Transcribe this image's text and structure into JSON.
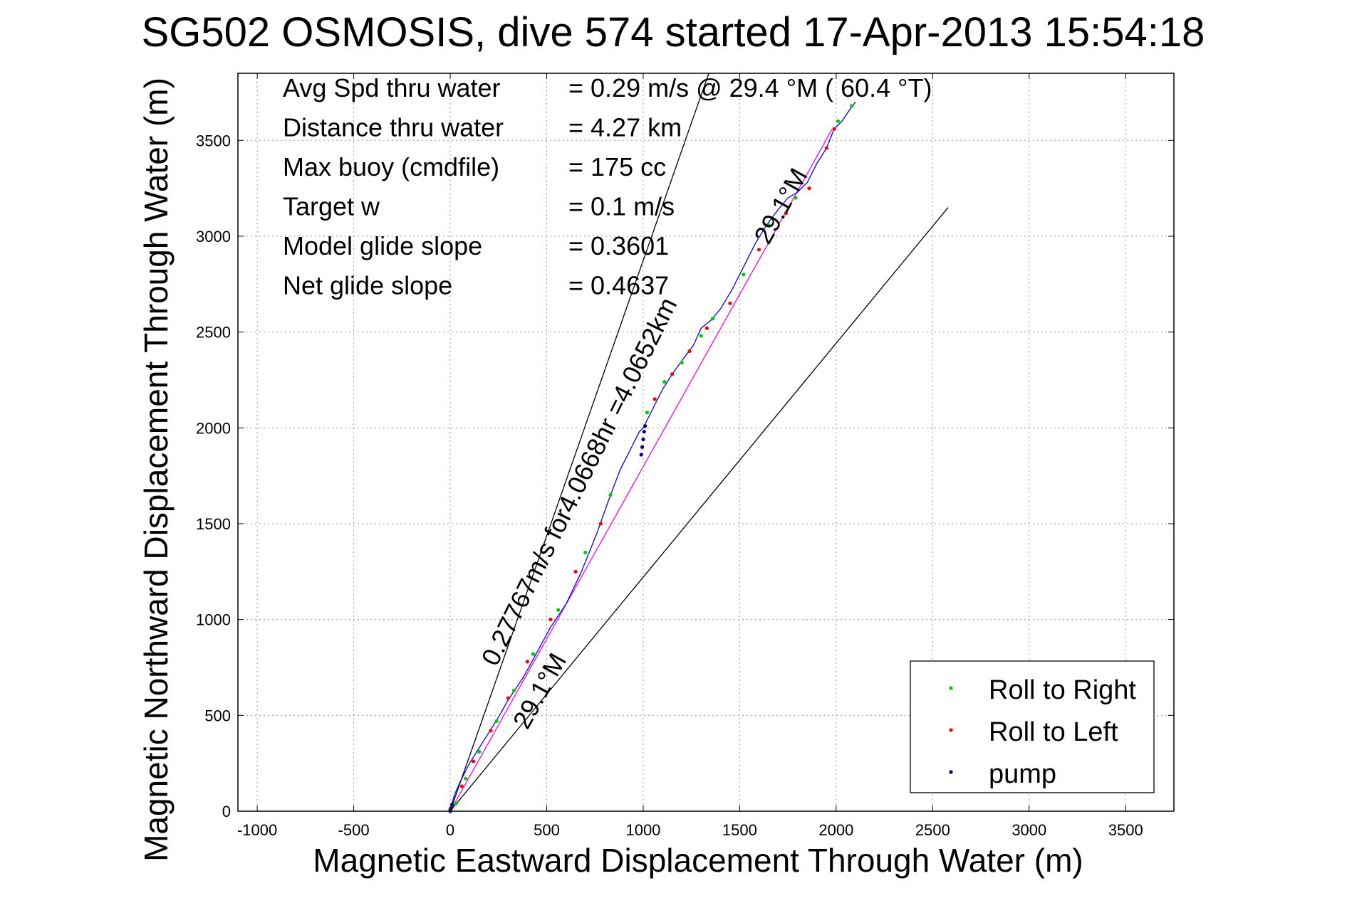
{
  "chart_data": {
    "type": "scatter",
    "title": "SG502 OSMOSIS, dive 574 started 17-Apr-2013 15:54:18",
    "xlabel": "Magnetic Eastward Displacement Through Water (m)",
    "ylabel": "Magnetic Northward Displacement Through Water (m)",
    "xlim": [
      -1100,
      3750
    ],
    "ylim": [
      0,
      3850
    ],
    "xticks": [
      -1000,
      -500,
      0,
      500,
      1000,
      1500,
      2000,
      2500,
      3000,
      3500
    ],
    "yticks": [
      0,
      500,
      1000,
      1500,
      2000,
      2500,
      3000,
      3500
    ],
    "grid": true,
    "stats": [
      {
        "label": "Avg Spd thru water",
        "value": "=  0.29 m/s @  29.4 °M ( 60.4 °T)"
      },
      {
        "label": "Distance thru water",
        "value": "=  4.27 km"
      },
      {
        "label": "Max buoy (cmdfile)",
        "value": "= 175 cc"
      },
      {
        "label": "Target w",
        "value": "= 0.1 m/s"
      },
      {
        "label": "Model glide slope",
        "value": "= 0.3601"
      },
      {
        "label": "Net glide slope",
        "value": "= 0.4637"
      }
    ],
    "annotations": [
      {
        "text": "0.27767m/s for4.0668hr =4.0652km",
        "x": 240,
        "y": 750,
        "angle_deg": 63.6
      },
      {
        "text": "29.1°M",
        "x": 400,
        "y": 420,
        "angle_deg": 60.9
      },
      {
        "text": "29.1°M",
        "x": 1650,
        "y": 2950,
        "angle_deg": 60.9
      }
    ],
    "guide_lines": [
      {
        "name": "heading-line-upper",
        "x": [
          0,
          1340
        ],
        "y": [
          0,
          3850
        ],
        "color": "#000000"
      },
      {
        "name": "heading-line-lower",
        "x": [
          0,
          2580
        ],
        "y": [
          0,
          3150
        ],
        "color": "#000000"
      },
      {
        "name": "net-track-line",
        "x": [
          0,
          1980
        ],
        "y": [
          0,
          3560
        ],
        "color": "#ff00ff"
      }
    ],
    "series": [
      {
        "name": "track",
        "color": "#0000ff",
        "x": [
          0,
          20,
          50,
          100,
          150,
          200,
          250,
          300,
          380,
          450,
          520,
          600,
          680,
          760,
          820,
          880,
          930,
          980,
          1000,
          1050,
          1100,
          1150,
          1200,
          1260,
          1300,
          1350,
          1400,
          1460,
          1520,
          1580,
          1640,
          1700,
          1750,
          1800,
          1850,
          1900,
          1950,
          1990,
          2030,
          2070,
          2100
        ],
        "y": [
          0,
          80,
          150,
          250,
          330,
          410,
          490,
          580,
          700,
          830,
          960,
          1080,
          1250,
          1450,
          1620,
          1780,
          1880,
          1980,
          2000,
          2100,
          2200,
          2280,
          2350,
          2430,
          2520,
          2560,
          2620,
          2720,
          2840,
          2960,
          3060,
          3140,
          3200,
          3230,
          3280,
          3380,
          3460,
          3560,
          3600,
          3660,
          3700
        ]
      },
      {
        "name": "Roll to Right",
        "color": "#00cc00",
        "x": [
          30,
          80,
          150,
          240,
          330,
          430,
          560,
          700,
          830,
          1020,
          1110,
          1200,
          1300,
          1360,
          1520,
          1650,
          1790,
          2010,
          2080
        ],
        "y": [
          40,
          170,
          310,
          470,
          630,
          820,
          1050,
          1350,
          1650,
          2080,
          2240,
          2340,
          2480,
          2570,
          2800,
          3060,
          3200,
          3600,
          3680
        ]
      },
      {
        "name": "Roll to Left",
        "color": "#ff0000",
        "x": [
          0,
          60,
          120,
          210,
          300,
          400,
          520,
          650,
          780,
          1060,
          1150,
          1240,
          1330,
          1450,
          1600,
          1740,
          1860,
          1950,
          1990
        ],
        "y": [
          10,
          130,
          260,
          420,
          590,
          780,
          1000,
          1250,
          1500,
          2150,
          2280,
          2400,
          2520,
          2650,
          2930,
          3120,
          3250,
          3460,
          3560
        ]
      },
      {
        "name": "pump",
        "color": "#000080",
        "x": [
          0,
          5,
          10,
          990,
          995,
          1000,
          1005,
          1010
        ],
        "y": [
          0,
          15,
          35,
          1860,
          1900,
          1940,
          1980,
          2010
        ]
      }
    ],
    "legend": {
      "position": "bottom-right",
      "entries": [
        {
          "label": "Roll to Right",
          "color": "#00cc00"
        },
        {
          "label": "Roll to Left",
          "color": "#ff0000"
        },
        {
          "label": "pump",
          "color": "#000080"
        }
      ]
    }
  }
}
